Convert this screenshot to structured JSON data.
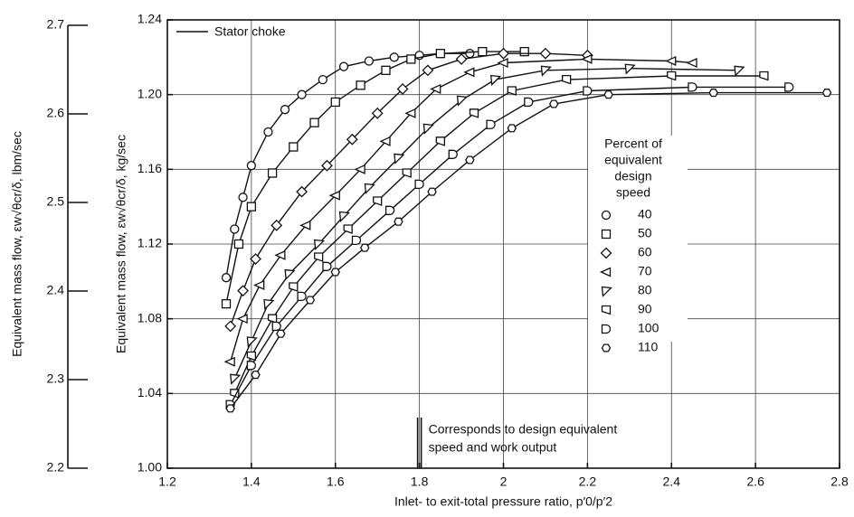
{
  "chart_data": {
    "type": "line",
    "x_label": "Inlet- to exit-total pressure ratio, p′0/p′2",
    "y_label": "Equivalent mass flow, εw√θcr/δ, kg/sec",
    "y2_label": "Equivalent mass flow, εw√θcr/δ, lbm/sec",
    "xlim": [
      1.2,
      2.8
    ],
    "xticks": [
      1.2,
      1.4,
      1.6,
      1.8,
      2.0,
      2.2,
      2.4,
      2.6,
      2.8
    ],
    "ylim": [
      1.0,
      1.24
    ],
    "yticks": [
      {
        "value": 1.0,
        "label": "1.00"
      },
      {
        "value": 1.04,
        "label": "1.04"
      },
      {
        "value": 1.08,
        "label": "1.08"
      },
      {
        "value": 1.12,
        "label": "1.12"
      },
      {
        "value": 1.16,
        "label": "1.16"
      },
      {
        "value": 1.2,
        "label": "1.20"
      },
      {
        "value": 1.24,
        "label": "1.24"
      }
    ],
    "y2lim": [
      2.2,
      2.7
    ],
    "y2ticks": [
      2.2,
      2.3,
      2.4,
      2.5,
      2.6,
      2.7
    ],
    "grid": true,
    "stator_choke_label": "Stator choke",
    "annotation": [
      "Corresponds to design equivalent",
      "speed and work output"
    ],
    "annotation_x": 1.8,
    "legend_title": [
      "Percent of",
      "equivalent",
      "design",
      "speed"
    ],
    "series": [
      {
        "name": "40",
        "color": "#111111",
        "marker": "circle",
        "x": [
          1.34,
          1.36,
          1.38,
          1.4,
          1.44,
          1.48,
          1.52,
          1.57,
          1.62,
          1.68,
          1.74,
          1.8,
          1.85,
          1.92
        ],
        "values": [
          1.102,
          1.128,
          1.145,
          1.162,
          1.18,
          1.192,
          1.2,
          1.208,
          1.215,
          1.218,
          1.22,
          1.221,
          1.222,
          1.222
        ]
      },
      {
        "name": "50",
        "color": "#111111",
        "marker": "square",
        "x": [
          1.34,
          1.37,
          1.4,
          1.45,
          1.5,
          1.55,
          1.6,
          1.66,
          1.72,
          1.78,
          1.85,
          1.95,
          2.05
        ],
        "values": [
          1.088,
          1.12,
          1.14,
          1.158,
          1.172,
          1.185,
          1.196,
          1.205,
          1.213,
          1.219,
          1.222,
          1.223,
          1.223
        ]
      },
      {
        "name": "60",
        "color": "#111111",
        "marker": "diamond",
        "x": [
          1.35,
          1.38,
          1.41,
          1.46,
          1.52,
          1.58,
          1.64,
          1.7,
          1.76,
          1.82,
          1.9,
          2.0,
          2.1,
          2.2
        ],
        "values": [
          1.076,
          1.095,
          1.112,
          1.13,
          1.148,
          1.162,
          1.176,
          1.19,
          1.203,
          1.213,
          1.219,
          1.222,
          1.222,
          1.221
        ]
      },
      {
        "name": "70",
        "color": "#111111",
        "marker": "tri-left",
        "x": [
          1.35,
          1.38,
          1.42,
          1.47,
          1.53,
          1.6,
          1.66,
          1.72,
          1.78,
          1.84,
          1.92,
          2.0,
          2.2,
          2.4,
          2.45
        ],
        "values": [
          1.057,
          1.08,
          1.098,
          1.114,
          1.13,
          1.146,
          1.16,
          1.175,
          1.19,
          1.203,
          1.212,
          1.217,
          1.219,
          1.218,
          1.217
        ]
      },
      {
        "name": "80",
        "color": "#111111",
        "marker": "tri-down",
        "x": [
          1.36,
          1.4,
          1.44,
          1.49,
          1.56,
          1.62,
          1.68,
          1.75,
          1.82,
          1.9,
          1.98,
          2.1,
          2.3,
          2.56
        ],
        "values": [
          1.048,
          1.068,
          1.088,
          1.104,
          1.12,
          1.135,
          1.15,
          1.166,
          1.182,
          1.197,
          1.208,
          1.213,
          1.214,
          1.213
        ]
      },
      {
        "name": "90",
        "color": "#111111",
        "marker": "flag",
        "x": [
          1.36,
          1.4,
          1.45,
          1.5,
          1.56,
          1.63,
          1.7,
          1.77,
          1.85,
          1.93,
          2.02,
          2.15,
          2.4,
          2.62
        ],
        "values": [
          1.04,
          1.06,
          1.08,
          1.097,
          1.113,
          1.128,
          1.143,
          1.158,
          1.175,
          1.19,
          1.202,
          1.208,
          1.21,
          1.21
        ]
      },
      {
        "name": "100",
        "color": "#111111",
        "marker": "dshape",
        "x": [
          1.35,
          1.4,
          1.46,
          1.52,
          1.58,
          1.65,
          1.73,
          1.8,
          1.88,
          1.97,
          2.06,
          2.2,
          2.45,
          2.68
        ],
        "values": [
          1.034,
          1.055,
          1.076,
          1.092,
          1.108,
          1.122,
          1.138,
          1.152,
          1.168,
          1.184,
          1.196,
          1.202,
          1.204,
          1.204
        ]
      },
      {
        "name": "110",
        "color": "#111111",
        "marker": "hexagon",
        "x": [
          1.35,
          1.41,
          1.47,
          1.54,
          1.6,
          1.67,
          1.75,
          1.83,
          1.92,
          2.02,
          2.12,
          2.25,
          2.5,
          2.77
        ],
        "values": [
          1.032,
          1.05,
          1.072,
          1.09,
          1.105,
          1.118,
          1.132,
          1.148,
          1.165,
          1.182,
          1.195,
          1.2,
          1.201,
          1.201
        ]
      }
    ]
  }
}
